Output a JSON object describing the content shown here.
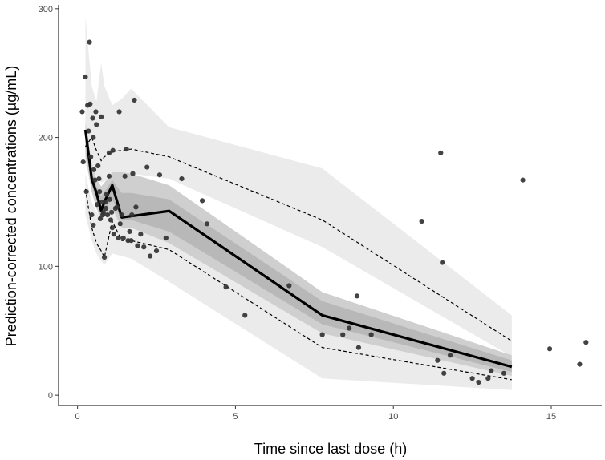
{
  "chart_data": {
    "type": "line",
    "title": "",
    "xlabel": "Time since last dose (h)",
    "ylabel": "Prediction-corrected concentrations (µg/mL)",
    "xlim": [
      -0.6,
      16.6
    ],
    "ylim": [
      -8,
      303
    ],
    "x_ticks": [
      0,
      5,
      10,
      15
    ],
    "x_tick_labels": [
      "0",
      "5",
      "10",
      "15"
    ],
    "y_ticks": [
      0,
      100,
      200,
      300
    ],
    "y_tick_labels": [
      "0",
      "100",
      "200",
      "300"
    ],
    "grid": false,
    "legend": "none",
    "colors": {
      "outer_band": "#ebebeb",
      "median_band_outer": "#cfcfcf",
      "median_band_inner": "#b8b8b8",
      "median_line": "#000000",
      "percentile_lines": "#000000",
      "points": "#333333"
    },
    "bins_x": [
      0.25,
      0.45,
      0.6,
      0.75,
      0.85,
      1.1,
      1.4,
      1.7,
      2.9,
      7.75,
      13.75
    ],
    "observed_median": [
      206,
      168,
      157,
      143,
      150,
      163,
      138,
      139,
      143,
      62,
      22
    ],
    "observed_p95": [
      193,
      200,
      190,
      182,
      185,
      189,
      190,
      191,
      185,
      136,
      42
    ],
    "observed_p5": [
      160,
      130,
      118,
      112,
      107,
      135,
      120,
      120,
      113,
      37,
      12
    ],
    "median_band_outer": {
      "lower": [
        185,
        158,
        145,
        135,
        138,
        145,
        130,
        130,
        118,
        48,
        15
      ],
      "upper": [
        212,
        180,
        168,
        162,
        165,
        173,
        173,
        172,
        163,
        80,
        31
      ]
    },
    "median_band_inner": {
      "lower": [
        192,
        163,
        152,
        140,
        144,
        152,
        136,
        136,
        127,
        55,
        18
      ],
      "upper": [
        204,
        173,
        162,
        154,
        158,
        167,
        157,
        157,
        152,
        73,
        27
      ]
    },
    "pi_upper_band": {
      "lower": [
        178,
        176,
        170,
        165,
        166,
        172,
        172,
        172,
        168,
        115,
        30
      ],
      "upper": [
        294,
        240,
        228,
        258,
        240,
        225,
        230,
        238,
        208,
        176,
        62
      ]
    },
    "pi_lower_band": {
      "lower": [
        140,
        120,
        110,
        104,
        101,
        110,
        108,
        106,
        88,
        13,
        4
      ],
      "upper": [
        172,
        150,
        142,
        138,
        137,
        145,
        138,
        137,
        125,
        55,
        16
      ]
    },
    "points": [
      [
        0.15,
        220
      ],
      [
        0.18,
        181
      ],
      [
        0.25,
        247
      ],
      [
        0.28,
        158
      ],
      [
        0.32,
        225
      ],
      [
        0.38,
        274
      ],
      [
        0.35,
        205
      ],
      [
        0.4,
        226
      ],
      [
        0.42,
        185
      ],
      [
        0.45,
        140
      ],
      [
        0.48,
        215
      ],
      [
        0.5,
        200
      ],
      [
        0.5,
        132
      ],
      [
        0.52,
        175
      ],
      [
        0.55,
        167
      ],
      [
        0.58,
        220
      ],
      [
        0.6,
        210
      ],
      [
        0.62,
        148
      ],
      [
        0.65,
        178
      ],
      [
        0.68,
        168
      ],
      [
        0.7,
        158
      ],
      [
        0.72,
        137
      ],
      [
        0.75,
        216
      ],
      [
        0.78,
        150
      ],
      [
        0.8,
        140
      ],
      [
        0.82,
        142
      ],
      [
        0.85,
        107
      ],
      [
        0.88,
        150
      ],
      [
        0.9,
        145
      ],
      [
        0.92,
        156
      ],
      [
        0.95,
        140
      ],
      [
        1.0,
        188
      ],
      [
        1.0,
        170
      ],
      [
        1.02,
        152
      ],
      [
        1.05,
        136
      ],
      [
        1.08,
        142
      ],
      [
        1.1,
        130
      ],
      [
        1.12,
        190
      ],
      [
        1.15,
        125
      ],
      [
        1.2,
        145
      ],
      [
        1.25,
        146
      ],
      [
        1.3,
        122
      ],
      [
        1.32,
        220
      ],
      [
        1.35,
        133
      ],
      [
        1.4,
        140
      ],
      [
        1.45,
        122
      ],
      [
        1.5,
        170
      ],
      [
        1.55,
        191
      ],
      [
        1.6,
        120
      ],
      [
        1.65,
        127
      ],
      [
        1.7,
        120
      ],
      [
        1.72,
        140
      ],
      [
        1.75,
        172
      ],
      [
        1.8,
        229
      ],
      [
        1.85,
        146
      ],
      [
        1.9,
        116
      ],
      [
        2.0,
        125
      ],
      [
        2.1,
        115
      ],
      [
        2.2,
        177
      ],
      [
        2.3,
        108
      ],
      [
        2.5,
        112
      ],
      [
        2.6,
        171
      ],
      [
        2.8,
        122
      ],
      [
        3.3,
        168
      ],
      [
        3.95,
        151
      ],
      [
        4.1,
        133
      ],
      [
        4.7,
        84
      ],
      [
        5.3,
        62
      ],
      [
        6.7,
        85
      ],
      [
        7.75,
        47
      ],
      [
        8.4,
        47
      ],
      [
        8.6,
        52
      ],
      [
        8.85,
        77
      ],
      [
        8.9,
        37
      ],
      [
        9.3,
        47
      ],
      [
        10.9,
        135
      ],
      [
        11.4,
        27
      ],
      [
        11.5,
        188
      ],
      [
        11.55,
        103
      ],
      [
        11.6,
        17
      ],
      [
        11.8,
        31
      ],
      [
        12.5,
        13
      ],
      [
        12.7,
        10
      ],
      [
        13.0,
        13
      ],
      [
        13.1,
        19
      ],
      [
        13.5,
        17
      ],
      [
        14.1,
        167
      ],
      [
        14.95,
        36
      ],
      [
        15.9,
        24
      ],
      [
        16.1,
        41
      ]
    ]
  }
}
